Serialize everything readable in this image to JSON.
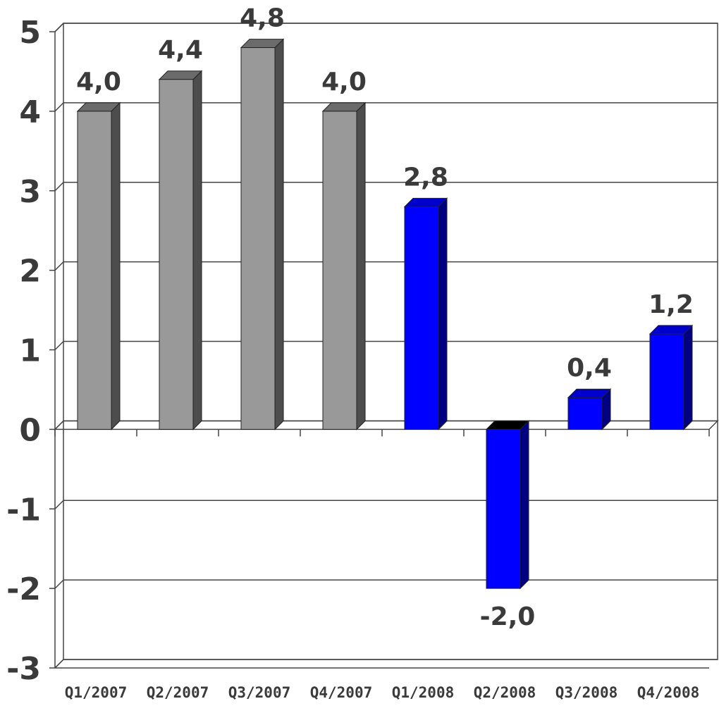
{
  "chart_data": {
    "type": "bar",
    "title": "",
    "xlabel": "",
    "ylabel": "",
    "categories": [
      "Q1/2007",
      "Q2/2007",
      "Q3/2007",
      "Q4/2007",
      "Q1/2008",
      "Q2/2008",
      "Q3/2008",
      "Q4/2008"
    ],
    "values": [
      4.0,
      4.4,
      4.8,
      4.0,
      2.8,
      -2.0,
      0.4,
      1.2
    ],
    "data_labels": [
      "4,0",
      "4,4",
      "4,8",
      "4,0",
      "2,8",
      "-2,0",
      "0,4",
      "1,2"
    ],
    "ylim": [
      -3,
      5
    ],
    "yticks": [
      5,
      4,
      3,
      2,
      1,
      0,
      -1,
      -2,
      -3
    ],
    "ytick_labels": [
      "5",
      "4",
      "3",
      "2",
      "1",
      "0",
      "-1",
      "-2",
      "-3"
    ],
    "grid": true,
    "legend": "none",
    "bar_colors": [
      "#999999",
      "#999999",
      "#999999",
      "#999999",
      "#0000ff",
      "#0000ff",
      "#0000ff",
      "#0000ff"
    ],
    "colors": {
      "gray_front": "#999999",
      "gray_side": "#4d4d4d",
      "gray_top": "#6b6b6b",
      "blue_front": "#0000ff",
      "blue_side": "#000080",
      "blue_top": "#0000cc",
      "grid": "#444444",
      "text": "#3a3a3a"
    }
  }
}
